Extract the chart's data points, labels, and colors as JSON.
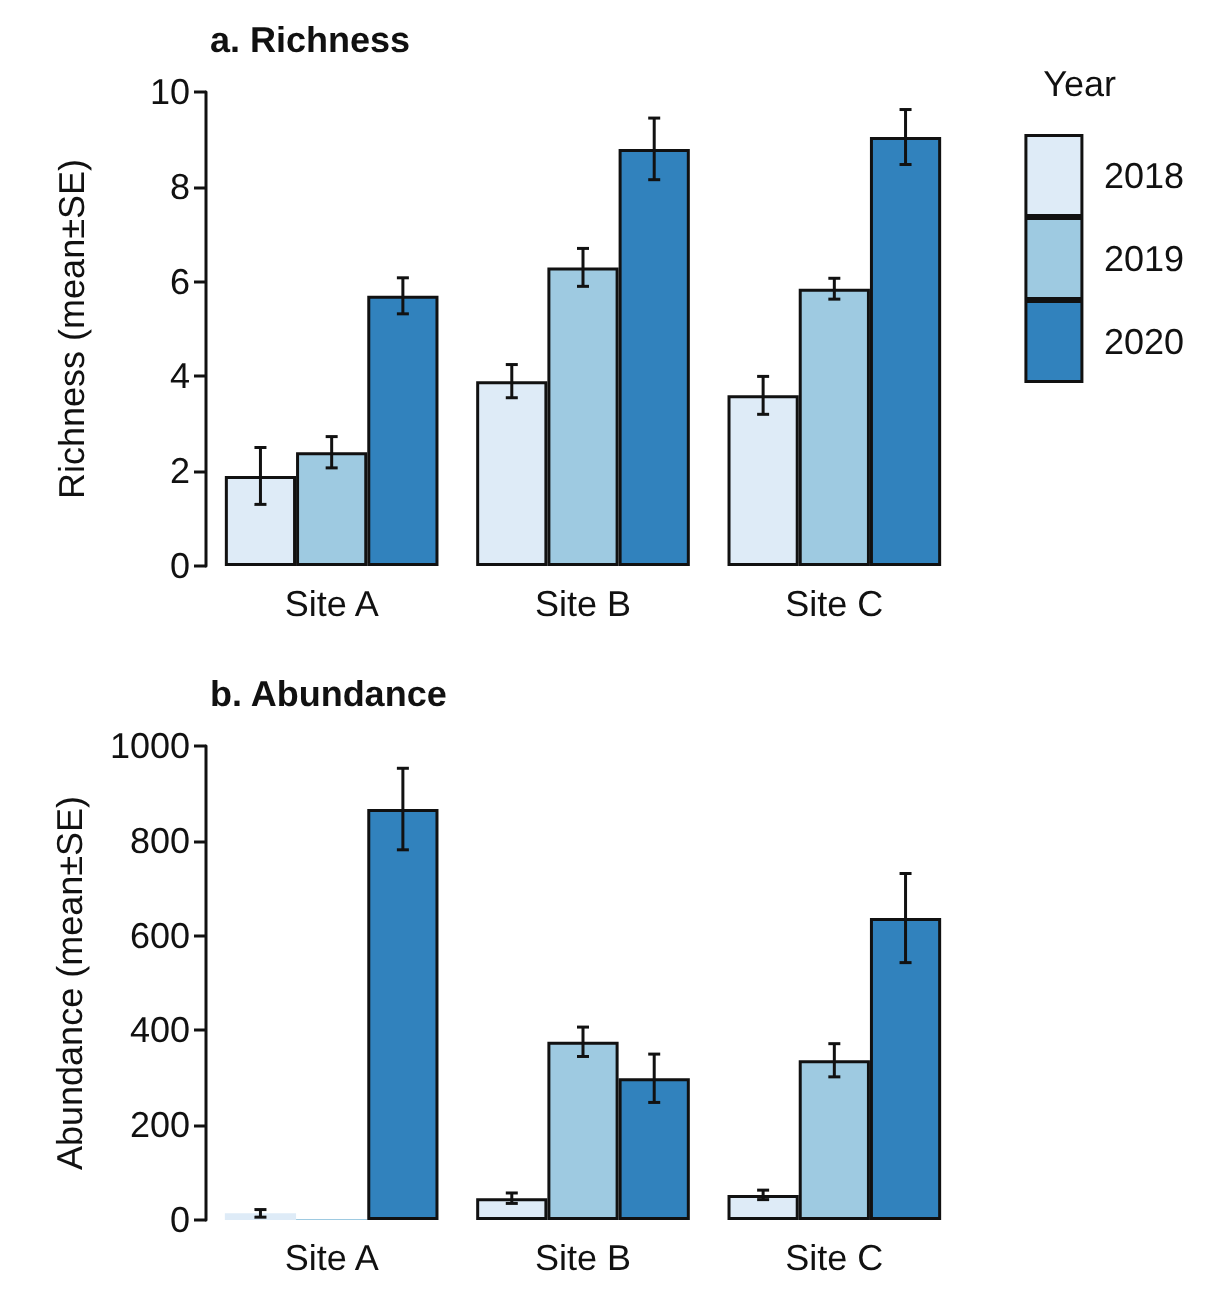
{
  "chart_data": [
    {
      "type": "bar",
      "title": "a. Richness",
      "ylabel": "Richness (mean±SE)",
      "legend_title": "Year",
      "legend": "right",
      "categories": [
        "Site A",
        "Site B",
        "Site C"
      ],
      "ylim": [
        0,
        10
      ],
      "yticks": [
        0,
        2,
        4,
        6,
        8,
        10
      ],
      "grid": false,
      "series": [
        {
          "name": "2018",
          "color": "#deebf7",
          "values": [
            1.9,
            3.9,
            3.6
          ],
          "errors": [
            0.6,
            0.35,
            0.4
          ]
        },
        {
          "name": "2019",
          "color": "#9ecae1",
          "values": [
            2.4,
            6.3,
            5.85
          ],
          "errors": [
            0.33,
            0.4,
            0.22
          ]
        },
        {
          "name": "2020",
          "color": "#3182bd",
          "values": [
            5.7,
            8.8,
            9.05
          ],
          "errors": [
            0.38,
            0.65,
            0.58
          ]
        }
      ]
    },
    {
      "type": "bar",
      "title": "b. Abundance",
      "ylabel": "Abundance (mean±SE)",
      "legend": false,
      "categories": [
        "Site A",
        "Site B",
        "Site C"
      ],
      "ylim": [
        0,
        1000
      ],
      "yticks": [
        0,
        200,
        400,
        600,
        800,
        1000
      ],
      "grid": false,
      "series": [
        {
          "color": "#deebf7",
          "values": [
            14,
            46,
            53
          ],
          "errors": [
            8,
            11,
            10
          ]
        },
        {
          "color": "#9ecae1",
          "values": [
            2,
            376,
            337
          ],
          "errors": [
            null,
            31,
            35
          ]
        },
        {
          "color": "#3182bd",
          "values": [
            867,
            299,
            637
          ],
          "errors": [
            86,
            51,
            94
          ]
        }
      ]
    }
  ]
}
